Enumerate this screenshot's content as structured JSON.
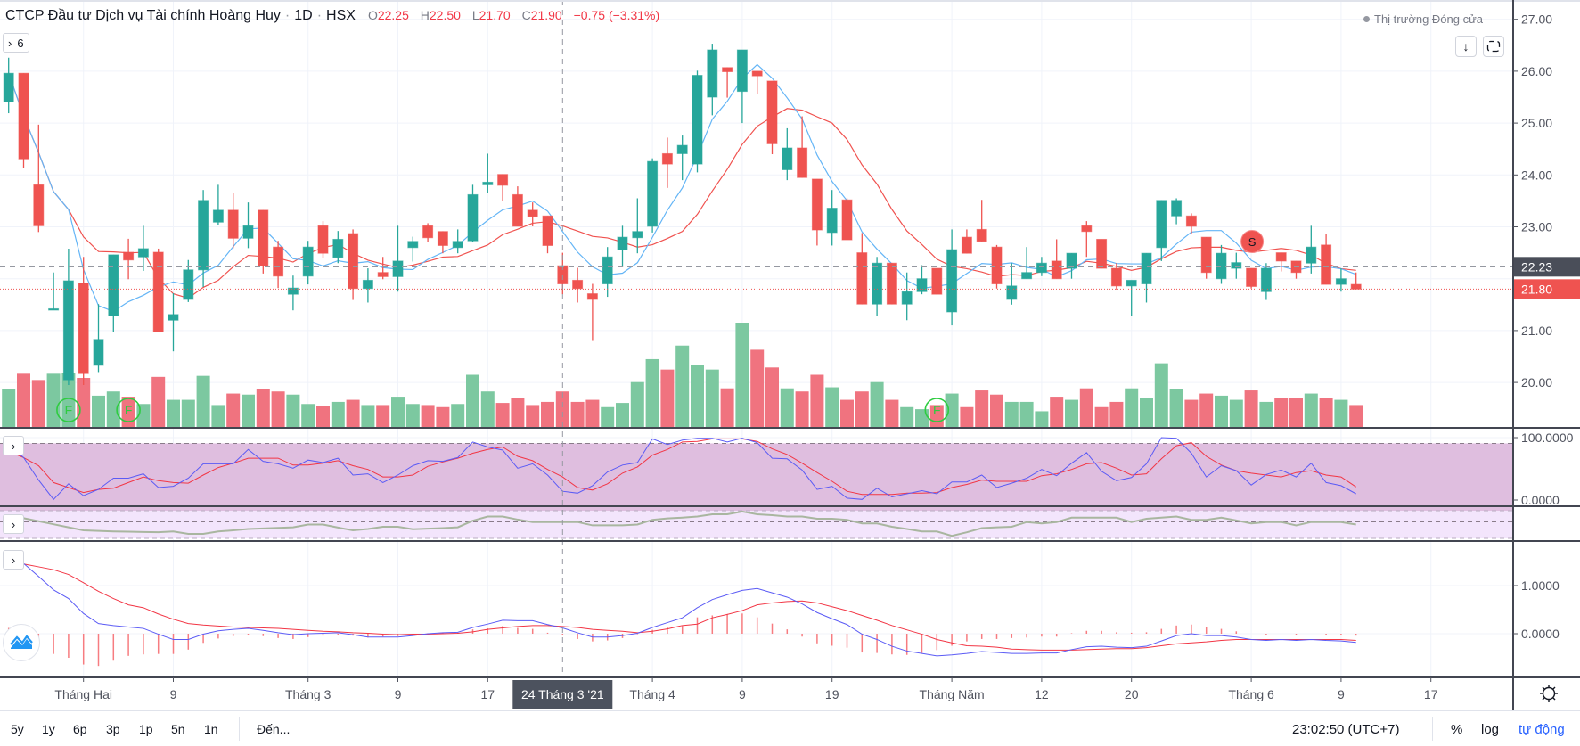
{
  "header": {
    "title": "CTCP Đầu tư Dịch vụ Tài chính Hoàng Huy",
    "sep1": "·",
    "interval": "1D",
    "sep2": "·",
    "exchange": "HSX",
    "o_label": "O",
    "o_value": "22.25",
    "h_label": "H",
    "h_value": "22.50",
    "l_label": "L",
    "l_value": "21.70",
    "c_label": "C",
    "c_value": "21.90",
    "change": "−0.75 (−3.31%)"
  },
  "indicator_toggle": {
    "icon": "chevron-right-icon",
    "count": "6"
  },
  "market_status": "Thị trường Đóng cửa",
  "buttons": {
    "scroll_down": "arrow-down-icon",
    "fullscreen": "fullscreen-icon"
  },
  "bottom_bar": {
    "ranges": [
      "5y",
      "1y",
      "6p",
      "3p",
      "1p",
      "5n",
      "1n"
    ],
    "goto": "Đến...",
    "clock": "23:02:50 (UTC+7)",
    "percent": "%",
    "log": "log",
    "auto": "tự động"
  },
  "colors": {
    "up": "#26a69a",
    "down": "#ef5350",
    "vol_up": "#7cc8a0",
    "vol_down": "#f0737f",
    "ma_fast": "#64b5f6",
    "ma_slow": "#f0524f",
    "osc_k": "#5b5bf5",
    "osc_d": "#f23645",
    "accent": "#2962ff"
  },
  "chart_data": {
    "type": "candlestick",
    "price_axis": {
      "ticks": [
        "27.00",
        "26.00",
        "25.00",
        "24.00",
        "23.00",
        "21.00",
        "20.00"
      ],
      "range": [
        19.87,
        27.37
      ]
    },
    "crosshair": {
      "date": "2021-03-24",
      "date_label": "24 Tháng 3 '21",
      "price_label": "22.23",
      "price": 22.23
    },
    "last_price": {
      "label": "21.80",
      "value": 21.8
    },
    "time_ticks": [
      {
        "label": "Tháng Hai",
        "date": "2021-02-01"
      },
      {
        "label": "9",
        "date": "2021-02-09"
      },
      {
        "label": "Tháng 3",
        "date": "2021-03-01"
      },
      {
        "label": "9",
        "date": "2021-03-09"
      },
      {
        "label": "17",
        "date": "2021-03-17"
      },
      {
        "label": "Tháng 4",
        "date": "2021-04-01"
      },
      {
        "label": "9",
        "date": "2021-04-09"
      },
      {
        "label": "19",
        "date": "2021-04-19"
      },
      {
        "label": "Tháng Năm",
        "date": "2021-05-04"
      },
      {
        "label": "12",
        "date": "2021-05-12"
      },
      {
        "label": "20",
        "date": "2021-05-20"
      },
      {
        "label": "Tháng 6",
        "date": "2021-06-01"
      },
      {
        "label": "9",
        "date": "2021-06-09"
      },
      {
        "label": "17",
        "date": "2021-06-17"
      }
    ],
    "candle_fields": [
      "date",
      "open",
      "high",
      "low",
      "close"
    ],
    "candles": [
      [
        "2021-01-25",
        25.41,
        26.26,
        25.19,
        25.96
      ],
      [
        "2021-01-26",
        25.96,
        25.96,
        24.14,
        24.31
      ],
      [
        "2021-01-27",
        23.81,
        24.97,
        22.9,
        23.02
      ],
      [
        "2021-01-28",
        21.4,
        22.12,
        21.4,
        21.42
      ],
      [
        "2021-01-29",
        20.05,
        22.58,
        19.95,
        21.96
      ],
      [
        "2021-02-01",
        21.91,
        22.42,
        19.95,
        20.17
      ],
      [
        "2021-02-02",
        20.33,
        21.51,
        20.2,
        20.83
      ],
      [
        "2021-02-03",
        21.29,
        22.46,
        20.98,
        22.46
      ],
      [
        "2021-02-04",
        22.51,
        22.77,
        21.99,
        22.36
      ],
      [
        "2021-02-05",
        22.42,
        23.02,
        22.15,
        22.58
      ],
      [
        "2021-02-08",
        22.51,
        22.58,
        20.98,
        20.98
      ],
      [
        "2021-02-09",
        21.2,
        21.72,
        20.6,
        21.31
      ],
      [
        "2021-02-17",
        21.6,
        22.36,
        21.55,
        22.17
      ],
      [
        "2021-02-18",
        22.17,
        23.71,
        21.84,
        23.51
      ],
      [
        "2021-02-19",
        23.09,
        23.81,
        23.04,
        23.32
      ],
      [
        "2021-02-22",
        23.32,
        23.66,
        22.59,
        22.78
      ],
      [
        "2021-02-23",
        22.78,
        23.47,
        22.59,
        23.02
      ],
      [
        "2021-02-24",
        23.32,
        23.32,
        22.1,
        22.25
      ],
      [
        "2021-02-25",
        22.61,
        22.73,
        21.82,
        22.05
      ],
      [
        "2021-02-26",
        21.7,
        22.06,
        21.39,
        21.82
      ],
      [
        "2021-03-01",
        22.05,
        22.73,
        21.89,
        22.61
      ],
      [
        "2021-03-02",
        23.02,
        23.11,
        22.4,
        22.49
      ],
      [
        "2021-03-03",
        22.41,
        22.92,
        22.3,
        22.76
      ],
      [
        "2021-03-04",
        22.87,
        22.95,
        21.59,
        21.81
      ],
      [
        "2021-03-05",
        21.81,
        22.2,
        21.54,
        21.97
      ],
      [
        "2021-03-08",
        22.12,
        22.42,
        21.99,
        22.04
      ],
      [
        "2021-03-09",
        22.04,
        23.02,
        21.75,
        22.34
      ],
      [
        "2021-03-10",
        22.6,
        22.81,
        22.33,
        22.72
      ],
      [
        "2021-03-11",
        23.02,
        23.07,
        22.7,
        22.79
      ],
      [
        "2021-03-12",
        22.91,
        22.91,
        22.49,
        22.64
      ],
      [
        "2021-03-15",
        22.6,
        22.95,
        22.49,
        22.72
      ],
      [
        "2021-03-16",
        22.73,
        23.81,
        22.7,
        23.62
      ],
      [
        "2021-03-17",
        23.81,
        24.41,
        23.65,
        23.86
      ],
      [
        "2021-03-18",
        24.01,
        24.01,
        23.5,
        23.8
      ],
      [
        "2021-03-19",
        23.62,
        23.78,
        23.01,
        23.01
      ],
      [
        "2021-03-22",
        23.32,
        23.47,
        23.01,
        23.2
      ],
      [
        "2021-03-23",
        23.21,
        23.21,
        22.49,
        22.64
      ],
      [
        "2021-03-24",
        22.25,
        22.5,
        21.7,
        21.9
      ],
      [
        "2021-03-25",
        21.97,
        22.21,
        21.54,
        21.81
      ],
      [
        "2021-03-26",
        21.71,
        21.9,
        20.8,
        21.6
      ],
      [
        "2021-03-29",
        21.9,
        22.61,
        21.65,
        22.42
      ],
      [
        "2021-03-30",
        22.56,
        23.02,
        22.22,
        22.8
      ],
      [
        "2021-03-31",
        22.79,
        23.55,
        22.49,
        22.91
      ],
      [
        "2021-04-01",
        23.01,
        24.32,
        22.89,
        24.26
      ],
      [
        "2021-04-02",
        24.41,
        24.72,
        23.75,
        24.21
      ],
      [
        "2021-04-05",
        24.41,
        24.76,
        23.9,
        24.57
      ],
      [
        "2021-04-06",
        24.21,
        26.01,
        24.05,
        25.92
      ],
      [
        "2021-04-07",
        25.5,
        26.53,
        25.15,
        26.41
      ],
      [
        "2021-04-08",
        26.07,
        26.07,
        25.49,
        25.99
      ],
      [
        "2021-04-09",
        25.61,
        26.41,
        25.0,
        26.41
      ],
      [
        "2021-04-12",
        26.0,
        26.0,
        25.56,
        25.91
      ],
      [
        "2021-04-13",
        25.81,
        25.81,
        24.4,
        24.6
      ],
      [
        "2021-04-14",
        24.1,
        24.9,
        23.9,
        24.52
      ],
      [
        "2021-04-15",
        24.52,
        25.13,
        23.95,
        23.95
      ],
      [
        "2021-04-16",
        23.92,
        23.92,
        22.64,
        22.94
      ],
      [
        "2021-04-19",
        22.89,
        23.71,
        22.64,
        23.36
      ],
      [
        "2021-04-20",
        23.52,
        23.55,
        22.75,
        22.75
      ],
      [
        "2021-04-22",
        22.5,
        22.88,
        21.51,
        21.51
      ],
      [
        "2021-04-23",
        21.51,
        22.42,
        21.29,
        22.3
      ],
      [
        "2021-04-26",
        22.3,
        22.3,
        21.51,
        21.51
      ],
      [
        "2021-04-27",
        21.51,
        22.12,
        21.2,
        21.75
      ],
      [
        "2021-04-28",
        21.75,
        22.26,
        21.7,
        22.0
      ],
      [
        "2021-04-29",
        22.2,
        22.2,
        21.7,
        21.7
      ],
      [
        "2021-05-04",
        21.36,
        22.95,
        21.1,
        22.56
      ],
      [
        "2021-05-05",
        22.8,
        22.95,
        22.49,
        22.49
      ],
      [
        "2021-05-06",
        22.95,
        23.52,
        22.72,
        22.72
      ],
      [
        "2021-05-07",
        22.61,
        22.65,
        21.81,
        21.9
      ],
      [
        "2021-05-10",
        21.6,
        22.3,
        21.5,
        21.86
      ],
      [
        "2021-05-11",
        22.0,
        22.61,
        22.0,
        22.12
      ],
      [
        "2021-05-12",
        22.12,
        22.42,
        22.05,
        22.3
      ],
      [
        "2021-05-13",
        22.34,
        22.76,
        22.0,
        22.0
      ],
      [
        "2021-05-14",
        22.2,
        22.49,
        22.0,
        22.49
      ],
      [
        "2021-05-17",
        23.02,
        23.11,
        22.42,
        22.91
      ],
      [
        "2021-05-18",
        22.76,
        22.76,
        22.2,
        22.2
      ],
      [
        "2021-05-19",
        22.2,
        22.3,
        21.79,
        21.86
      ],
      [
        "2021-05-20",
        21.86,
        21.97,
        21.29,
        21.97
      ],
      [
        "2021-05-21",
        21.9,
        22.49,
        21.54,
        22.49
      ],
      [
        "2021-05-24",
        22.6,
        23.51,
        22.34,
        23.51
      ],
      [
        "2021-05-25",
        23.21,
        23.55,
        23.05,
        23.51
      ],
      [
        "2021-05-26",
        23.21,
        23.26,
        22.86,
        23.01
      ],
      [
        "2021-05-27",
        22.8,
        22.8,
        22.0,
        22.12
      ],
      [
        "2021-05-28",
        22.0,
        22.65,
        21.9,
        22.49
      ],
      [
        "2021-05-31",
        22.2,
        22.5,
        22.0,
        22.31
      ],
      [
        "2021-06-01",
        22.2,
        22.2,
        21.81,
        21.85
      ],
      [
        "2021-06-02",
        21.75,
        22.3,
        21.59,
        22.2
      ],
      [
        "2021-06-03",
        22.5,
        22.5,
        22.14,
        22.34
      ],
      [
        "2021-06-04",
        22.34,
        22.34,
        22.0,
        22.12
      ],
      [
        "2021-06-07",
        22.3,
        23.02,
        22.1,
        22.61
      ],
      [
        "2021-06-08",
        22.65,
        22.86,
        21.89,
        21.89
      ],
      [
        "2021-06-09",
        21.89,
        22.2,
        21.75,
        22.0
      ],
      [
        "2021-06-10",
        21.89,
        22.12,
        21.8,
        21.8
      ]
    ],
    "volume_relative_pct": [
      36,
      51,
      45,
      51,
      52,
      47,
      30,
      34,
      29,
      22,
      48,
      26,
      26,
      49,
      21,
      32,
      31,
      36,
      34,
      31,
      22,
      20,
      24,
      26,
      21,
      21,
      29,
      22,
      21,
      19,
      22,
      50,
      34,
      23,
      28,
      21,
      24,
      34,
      24,
      26,
      19,
      23,
      43,
      65,
      55,
      78,
      59,
      55,
      37,
      100,
      74,
      57,
      37,
      34,
      50,
      38,
      26,
      34,
      43,
      26,
      19,
      17,
      21,
      32,
      19,
      35,
      31,
      24,
      24,
      15,
      29,
      26,
      37,
      19,
      24,
      37,
      28,
      61,
      36,
      26,
      32,
      30,
      26,
      35,
      24,
      28,
      28,
      32,
      28,
      26,
      21
    ],
    "signals": [
      {
        "label": "F",
        "date": "2021-01-29",
        "kind": "volume"
      },
      {
        "label": "F",
        "date": "2021-02-04",
        "kind": "volume"
      },
      {
        "label": "F",
        "date": "2021-04-29",
        "kind": "volume"
      },
      {
        "label": "S",
        "date": "2021-06-01",
        "kind": "price"
      }
    ],
    "oscillator_1": {
      "axis_ticks": [
        "100.0000",
        "0.0000"
      ],
      "range": [
        0,
        100
      ],
      "bands": [
        80,
        20
      ],
      "k": [
        87,
        68,
        32,
        1,
        26,
        7,
        17,
        35,
        35,
        42,
        20,
        22,
        35,
        58,
        58,
        58,
        81,
        62,
        58,
        51,
        64,
        60,
        67,
        40,
        42,
        28,
        40,
        55,
        63,
        62,
        68,
        93,
        85,
        80,
        51,
        58,
        40,
        14,
        11,
        23,
        45,
        56,
        60,
        98,
        89,
        96,
        99,
        99,
        93,
        99,
        92,
        67,
        66,
        48,
        17,
        22,
        3,
        1,
        19,
        5,
        10,
        15,
        10,
        29,
        29,
        40,
        20,
        27,
        35,
        49,
        39,
        59,
        76,
        46,
        31,
        36,
        58,
        100,
        99,
        75,
        37,
        55,
        47,
        24,
        41,
        48,
        37,
        59,
        28,
        23,
        10
      ],
      "d": [
        78,
        68,
        55,
        28,
        20,
        12,
        17,
        19,
        28,
        37,
        31,
        28,
        27,
        40,
        52,
        59,
        67,
        67,
        67,
        56,
        56,
        59,
        63,
        55,
        49,
        37,
        37,
        40,
        54,
        61,
        67,
        75,
        81,
        85,
        70,
        63,
        49,
        37,
        20,
        16,
        26,
        43,
        53,
        72,
        81,
        93,
        94,
        98,
        98,
        98,
        94,
        82,
        73,
        59,
        44,
        30,
        14,
        9,
        9,
        9,
        11,
        11,
        12,
        20,
        25,
        32,
        30,
        30,
        30,
        39,
        42,
        49,
        58,
        60,
        51,
        40,
        42,
        66,
        87,
        92,
        70,
        56,
        47,
        43,
        40,
        37,
        44,
        47,
        40,
        37,
        21
      ]
    },
    "oscillator_2": {
      "band_level": [
        0.84,
        0.73,
        0.62,
        0.51,
        0.4,
        0.29,
        0.27,
        0.25,
        0.24,
        0.23,
        0.22,
        0.25,
        0.16,
        0.16,
        0.25,
        0.29,
        0.34,
        0.36,
        0.38,
        0.4,
        0.5,
        0.5,
        0.39,
        0.29,
        0.34,
        0.42,
        0.42,
        0.33,
        0.35,
        0.37,
        0.4,
        0.64,
        0.79,
        0.79,
        0.68,
        0.59,
        0.59,
        0.59,
        0.59,
        0.47,
        0.47,
        0.47,
        0.5,
        0.67,
        0.72,
        0.75,
        0.79,
        0.87,
        0.87,
        0.97,
        0.87,
        0.84,
        0.79,
        0.79,
        0.71,
        0.71,
        0.67,
        0.54,
        0.54,
        0.42,
        0.34,
        0.25,
        0.25,
        0.09,
        0.22,
        0.37,
        0.4,
        0.42,
        0.59,
        0.54,
        0.59,
        0.75,
        0.75,
        0.75,
        0.75,
        0.59,
        0.71,
        0.75,
        0.79,
        0.67,
        0.67,
        0.75,
        0.65,
        0.54,
        0.59,
        0.59,
        0.47,
        0.59,
        0.59,
        0.59,
        0.5
      ]
    },
    "macd": {
      "axis_ticks": [
        "1.0000",
        "0.0000"
      ],
      "tick_values": [
        1,
        0
      ],
      "macd": [
        1.56,
        1.46,
        1.19,
        0.91,
        0.73,
        0.42,
        0.21,
        0.17,
        0.14,
        0.11,
        -0.01,
        -0.12,
        -0.12,
        -0.01,
        0.06,
        0.09,
        0.11,
        0.07,
        0.02,
        -0.02,
        0.0,
        0.01,
        0.02,
        -0.02,
        -0.07,
        -0.07,
        -0.07,
        -0.04,
        0.0,
        0.02,
        0.03,
        0.13,
        0.2,
        0.28,
        0.27,
        0.27,
        0.19,
        0.12,
        0.02,
        -0.07,
        -0.07,
        -0.04,
        0.01,
        0.13,
        0.23,
        0.33,
        0.54,
        0.71,
        0.81,
        0.9,
        0.94,
        0.85,
        0.76,
        0.62,
        0.44,
        0.31,
        0.19,
        -0.01,
        -0.12,
        -0.26,
        -0.36,
        -0.41,
        -0.46,
        -0.44,
        -0.41,
        -0.37,
        -0.39,
        -0.41,
        -0.41,
        -0.4,
        -0.4,
        -0.33,
        -0.27,
        -0.26,
        -0.28,
        -0.29,
        -0.26,
        -0.15,
        -0.04,
        0.0,
        -0.04,
        -0.04,
        -0.07,
        -0.12,
        -0.14,
        -0.12,
        -0.14,
        -0.12,
        -0.14,
        -0.15,
        -0.18
      ],
      "signal": [
        1.44,
        1.45,
        1.39,
        1.33,
        1.23,
        1.06,
        0.88,
        0.73,
        0.6,
        0.54,
        0.41,
        0.3,
        0.21,
        0.18,
        0.16,
        0.14,
        0.13,
        0.12,
        0.11,
        0.09,
        0.07,
        0.05,
        0.04,
        0.02,
        0.01,
        -0.01,
        -0.02,
        -0.01,
        -0.01,
        0.0,
        0.01,
        0.04,
        0.09,
        0.12,
        0.15,
        0.17,
        0.17,
        0.15,
        0.13,
        0.09,
        0.07,
        0.05,
        0.02,
        0.05,
        0.1,
        0.17,
        0.2,
        0.33,
        0.4,
        0.48,
        0.6,
        0.64,
        0.67,
        0.68,
        0.64,
        0.56,
        0.48,
        0.38,
        0.28,
        0.17,
        0.08,
        -0.01,
        -0.12,
        -0.19,
        -0.25,
        -0.26,
        -0.28,
        -0.32,
        -0.33,
        -0.34,
        -0.34,
        -0.34,
        -0.33,
        -0.32,
        -0.31,
        -0.31,
        -0.29,
        -0.25,
        -0.21,
        -0.19,
        -0.17,
        -0.14,
        -0.12,
        -0.12,
        -0.12,
        -0.12,
        -0.12,
        -0.12,
        -0.12,
        -0.12,
        -0.14
      ]
    }
  }
}
